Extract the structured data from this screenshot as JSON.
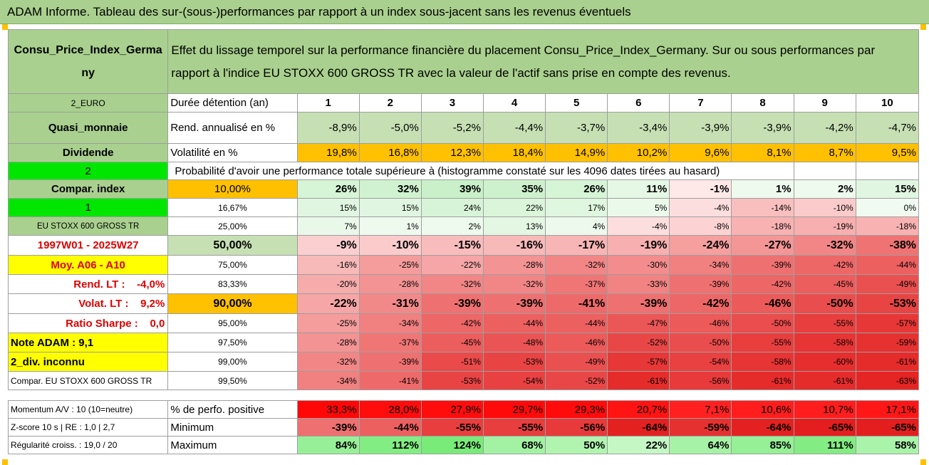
{
  "title": "ADAM Informe. Tableau des sur-(sous-)performances par rapport à un index sous-jacent sans les revenus éventuels",
  "header": {
    "asset": "Consu_Price_Index_Germany",
    "description": "Effet du lissage temporel sur la performance financière du placement Consu_Price_Index_Germany. Sur ou sous performances par rapport à l'indice EU STOXX 600 GROSS TR avec la valeur de l'actif sans prise en compte des revenus."
  },
  "left": {
    "currency": "2_EURO",
    "category": "Quasi_monnaie",
    "dividend": "Dividende",
    "compar_num": "2",
    "compar_index": "Compar. index",
    "one": "1",
    "index_name": "EU STOXX 600 GROSS TR",
    "period": "1997W01 - 2025W27",
    "moy": "Moy. A06 - A10",
    "rend_lt": "Rend. LT :    -4,0%",
    "volat_lt": "Volat. LT :    9,2%",
    "ratio_sharpe": "Ratio Sharpe :    0,0",
    "note_adam": "Note ADAM : 9,1",
    "div_inconnu": "2_div. inconnu",
    "compar_full": "Compar. EU STOXX 600 GROSS TR"
  },
  "labels": {
    "duree": "Durée détention (an)",
    "rend": "Rend. annualisé en %",
    "volat": "Volatilité en %",
    "proba": "Probabilité d'avoir une performance totale supérieure à (histogramme constaté sur les 4096 dates tirées au hasard)",
    "perfo_pos": "% de perfo. positive",
    "minimum": "Minimum",
    "maximum": "Maximum"
  },
  "years": [
    "1",
    "2",
    "3",
    "4",
    "5",
    "6",
    "7",
    "8",
    "9",
    "10"
  ],
  "rend": [
    "-8,9%",
    "-5,0%",
    "-5,2%",
    "-4,4%",
    "-3,7%",
    "-3,4%",
    "-3,9%",
    "-3,9%",
    "-4,2%",
    "-4,7%"
  ],
  "volat": [
    "19,8%",
    "16,8%",
    "12,3%",
    "18,4%",
    "14,9%",
    "10,2%",
    "9,6%",
    "8,1%",
    "8,7%",
    "9,5%"
  ],
  "percentiles": [
    {
      "pct": "10,00%",
      "values": [
        "26%",
        "32%",
        "39%",
        "35%",
        "26%",
        "11%",
        "-1%",
        "1%",
        "2%",
        "15%"
      ]
    },
    {
      "pct": "16,67%",
      "values": [
        "15%",
        "15%",
        "24%",
        "22%",
        "17%",
        "5%",
        "-4%",
        "-14%",
        "-10%",
        "0%"
      ]
    },
    {
      "pct": "25,00%",
      "values": [
        "7%",
        "1%",
        "2%",
        "13%",
        "4%",
        "-4%",
        "-8%",
        "-18%",
        "-19%",
        "-18%"
      ]
    },
    {
      "pct": "50,00%",
      "values": [
        "-9%",
        "-10%",
        "-15%",
        "-16%",
        "-17%",
        "-19%",
        "-24%",
        "-27%",
        "-32%",
        "-38%"
      ]
    },
    {
      "pct": "75,00%",
      "values": [
        "-16%",
        "-25%",
        "-22%",
        "-28%",
        "-32%",
        "-30%",
        "-34%",
        "-39%",
        "-42%",
        "-44%"
      ]
    },
    {
      "pct": "83,33%",
      "values": [
        "-20%",
        "-28%",
        "-32%",
        "-32%",
        "-37%",
        "-33%",
        "-39%",
        "-42%",
        "-45%",
        "-49%"
      ]
    },
    {
      "pct": "90,00%",
      "values": [
        "-22%",
        "-31%",
        "-39%",
        "-39%",
        "-41%",
        "-39%",
        "-42%",
        "-46%",
        "-50%",
        "-53%"
      ]
    },
    {
      "pct": "95,00%",
      "values": [
        "-25%",
        "-34%",
        "-42%",
        "-44%",
        "-44%",
        "-47%",
        "-46%",
        "-50%",
        "-55%",
        "-57%"
      ]
    },
    {
      "pct": "97,50%",
      "values": [
        "-28%",
        "-37%",
        "-45%",
        "-48%",
        "-46%",
        "-52%",
        "-50%",
        "-55%",
        "-58%",
        "-59%"
      ]
    },
    {
      "pct": "99,00%",
      "values": [
        "-32%",
        "-39%",
        "-51%",
        "-53%",
        "-49%",
        "-57%",
        "-54%",
        "-58%",
        "-60%",
        "-61%"
      ]
    },
    {
      "pct": "99,50%",
      "values": [
        "-34%",
        "-41%",
        "-53%",
        "-54%",
        "-52%",
        "-61%",
        "-56%",
        "-61%",
        "-61%",
        "-63%"
      ]
    }
  ],
  "bottom": {
    "momentum": "Momentum A/V : 10 (10=neutre)",
    "zscore": "Z-score 10 s | RE : 1,0 | 2,7",
    "regularite": "Régularité croiss. : 19,0 / 20",
    "perfo_pos": [
      "33,3%",
      "28,0%",
      "27,9%",
      "29,7%",
      "29,3%",
      "20,7%",
      "7,1%",
      "10,6%",
      "10,7%",
      "17,1%"
    ],
    "minimum": [
      "-39%",
      "-44%",
      "-55%",
      "-55%",
      "-56%",
      "-64%",
      "-59%",
      "-64%",
      "-65%",
      "-65%"
    ],
    "maximum": [
      "84%",
      "112%",
      "124%",
      "68%",
      "50%",
      "22%",
      "64%",
      "85%",
      "111%",
      "58%"
    ]
  },
  "colors": {
    "header_green": "#a9d08e",
    "light_green": "#c6e0b4",
    "bright_green": "#00e600",
    "yellow": "#ffff00",
    "orange": "#ffc000",
    "positive_cell": "#e2f5e2",
    "negative_scale_light": "#ffe8e8",
    "negative_scale_dark": "#e42020",
    "perfo_red": "#ff0000",
    "max_green": "#8ee88e",
    "label_red": "#e00000"
  }
}
